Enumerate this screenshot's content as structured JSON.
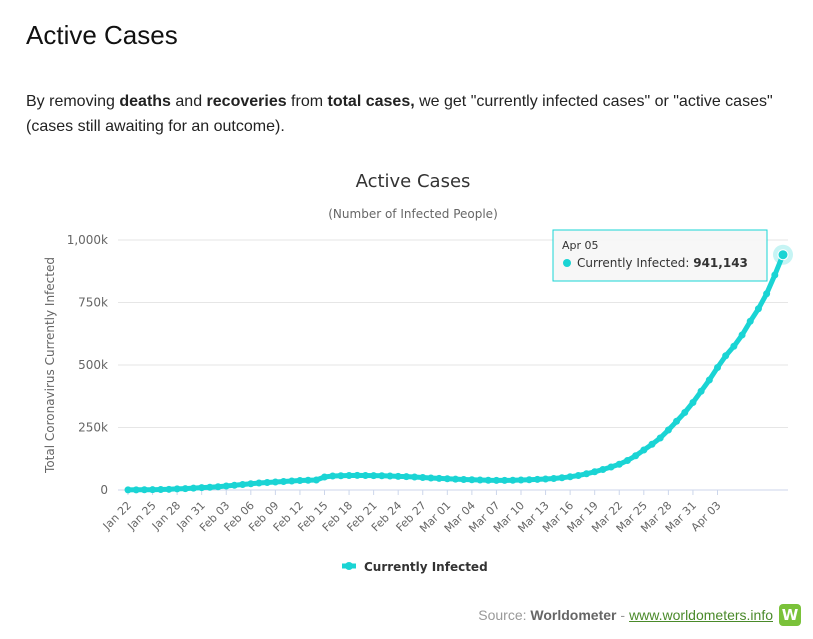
{
  "heading": "Active Cases",
  "intro": {
    "p1": "By removing ",
    "b1": "deaths",
    "p2": " and ",
    "b2": "recoveries",
    "p3": " from ",
    "b3": "total cases,",
    "p4": " we get \"currently infected cases\" or \"active cases\" (cases still awaiting for an outcome)."
  },
  "colors": {
    "series": "#1ad4d4",
    "grid": "#e6e6e6",
    "axis_text": "#666666"
  },
  "chart_data": {
    "type": "line",
    "title": "Active Cases",
    "subtitle": "(Number of Infected People)",
    "xlabel": "",
    "ylabel": "Total Coronavirus Currently Infected",
    "ylim": [
      0,
      1000000
    ],
    "yticks": [
      0,
      250000,
      500000,
      750000,
      1000000
    ],
    "ytick_labels": [
      "0",
      "250k",
      "500k",
      "750k",
      "1,000k"
    ],
    "xtick_labels": [
      "Jan 22",
      "Jan 25",
      "Jan 28",
      "Jan 31",
      "Feb 03",
      "Feb 06",
      "Feb 09",
      "Feb 12",
      "Feb 15",
      "Feb 18",
      "Feb 21",
      "Feb 24",
      "Feb 27",
      "Mar 01",
      "Mar 04",
      "Mar 07",
      "Mar 10",
      "Mar 13",
      "Mar 16",
      "Mar 19",
      "Mar 22",
      "Mar 25",
      "Mar 28",
      "Mar 31",
      "Apr 03"
    ],
    "legend": "bottom-center",
    "series": [
      {
        "name": "Currently Infected",
        "start_date": "Jan 22",
        "values": [
          547,
          620,
          900,
          1300,
          2000,
          2700,
          4400,
          5500,
          7500,
          9400,
          11000,
          13000,
          16000,
          19000,
          22000,
          25000,
          28000,
          30000,
          32000,
          34000,
          36000,
          38000,
          39000,
          40000,
          52000,
          56000,
          57000,
          58000,
          58500,
          58000,
          57500,
          57000,
          56000,
          54500,
          53500,
          52000,
          50000,
          48000,
          46500,
          45000,
          43500,
          42000,
          41000,
          40000,
          39000,
          38500,
          38500,
          39000,
          40000,
          41000,
          42500,
          44000,
          46000,
          49000,
          53000,
          58000,
          65000,
          73000,
          82000,
          92000,
          103000,
          118000,
          137000,
          160000,
          183000,
          208000,
          240000,
          275000,
          310000,
          350000,
          395000,
          440000,
          490000,
          537000,
          575000,
          620000,
          675000,
          725000,
          785000,
          860000,
          941143
        ]
      }
    ],
    "tooltip": {
      "date": "Apr 05",
      "label": "Currently Infected:",
      "value": "941,143"
    }
  },
  "source": {
    "prefix": "Source:",
    "name": "Worldometer",
    "sep": "-",
    "link": "www.worldometers.info"
  }
}
